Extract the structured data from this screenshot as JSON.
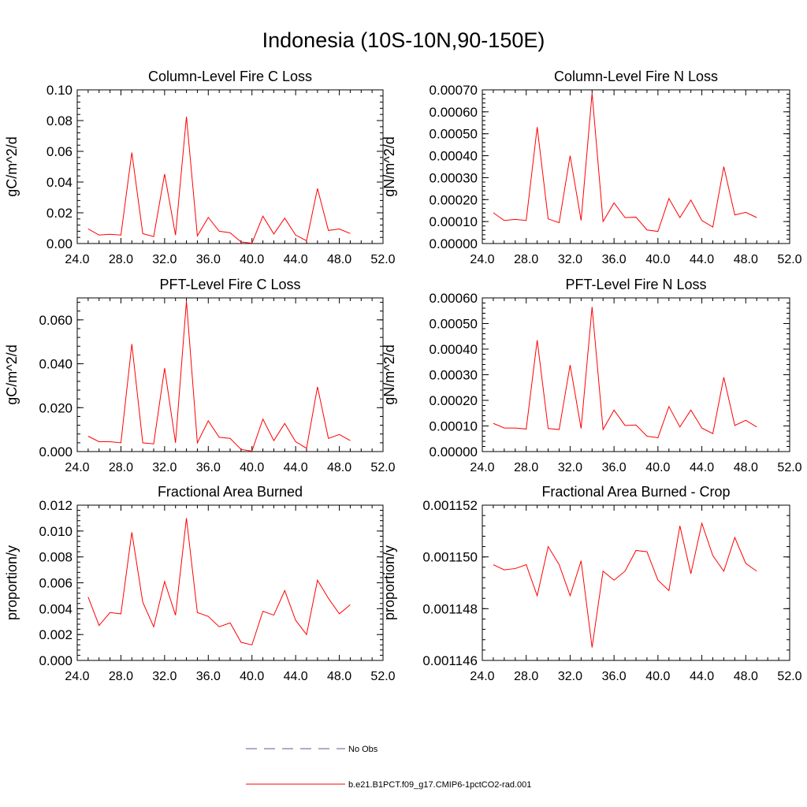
{
  "title": "Indonesia (10S-10N,90-150E)",
  "legend": {
    "placement": "bottom-center",
    "items": [
      {
        "label": "No Obs",
        "color": "#5a5aa0",
        "style": "dashed"
      },
      {
        "label": "b.e21.B1PCT.f09_g17.CMIP6-1pctCO2-rad.001",
        "color": "#ff0000",
        "style": "solid"
      }
    ]
  },
  "chart_data": [
    {
      "type": "line",
      "title": "Column-Level Fire C Loss",
      "ylabel": "gC/m^2/d",
      "xlabel": "",
      "xlim": [
        24,
        52
      ],
      "ylim": [
        0,
        0.1
      ],
      "xticks": [
        "24.0",
        "28.0",
        "32.0",
        "36.0",
        "40.0",
        "44.0",
        "48.0",
        "52.0"
      ],
      "yticks": [
        "0.00",
        "0.02",
        "0.04",
        "0.06",
        "0.08",
        "0.10"
      ],
      "x": [
        25,
        26,
        27,
        28,
        29,
        30,
        31,
        32,
        33,
        34,
        35,
        36,
        37,
        38,
        39,
        40,
        41,
        42,
        43,
        44,
        45,
        46,
        47,
        48,
        49
      ],
      "series": [
        {
          "color": "#ff0000",
          "values": [
            0.0095,
            0.0055,
            0.006,
            0.0055,
            0.0592,
            0.0065,
            0.0045,
            0.0452,
            0.0055,
            0.0825,
            0.005,
            0.017,
            0.008,
            0.007,
            0.001,
            0.0002,
            0.0178,
            0.0062,
            0.0165,
            0.0055,
            0.0018,
            0.0358,
            0.0085,
            0.0095,
            0.0065
          ]
        }
      ]
    },
    {
      "type": "line",
      "title": "Column-Level Fire N Loss",
      "ylabel": "gN/m^2/d",
      "xlabel": "",
      "xlim": [
        24,
        52
      ],
      "ylim": [
        0,
        0.0007
      ],
      "xticks": [
        "24.0",
        "28.0",
        "32.0",
        "36.0",
        "40.0",
        "44.0",
        "48.0",
        "52.0"
      ],
      "yticks": [
        "0.00000",
        "0.00010",
        "0.00020",
        "0.00030",
        "0.00040",
        "0.00050",
        "0.00060",
        "0.00070"
      ],
      "x": [
        25,
        26,
        27,
        28,
        29,
        30,
        31,
        32,
        33,
        34,
        35,
        36,
        37,
        38,
        39,
        40,
        41,
        42,
        43,
        44,
        45,
        46,
        47,
        48,
        49
      ],
      "series": [
        {
          "color": "#ff0000",
          "values": [
            0.00014,
            0.000105,
            0.00011,
            0.000105,
            0.00053,
            0.000112,
            9.5e-05,
            0.0004,
            0.000105,
            0.000685,
            0.0001,
            0.000185,
            0.000118,
            0.00012,
            6.2e-05,
            5.5e-05,
            0.000205,
            0.000118,
            0.000198,
            0.000105,
            7.5e-05,
            0.00035,
            0.00013,
            0.000142,
            0.000118
          ]
        }
      ]
    },
    {
      "type": "line",
      "title": "PFT-Level Fire C Loss",
      "ylabel": "gC/m^2/d",
      "xlabel": "",
      "xlim": [
        24,
        52
      ],
      "ylim": [
        0,
        0.07
      ],
      "xticks": [
        "24.0",
        "28.0",
        "32.0",
        "36.0",
        "40.0",
        "44.0",
        "48.0",
        "52.0"
      ],
      "yticks": [
        "0.000",
        "0.020",
        "0.040",
        "0.060"
      ],
      "ytick_values": [
        0,
        0.02,
        0.04,
        0.06
      ],
      "x": [
        25,
        26,
        27,
        28,
        29,
        30,
        31,
        32,
        33,
        34,
        35,
        36,
        37,
        38,
        39,
        40,
        41,
        42,
        43,
        44,
        45,
        46,
        47,
        48,
        49
      ],
      "series": [
        {
          "color": "#ff0000",
          "values": [
            0.007,
            0.0045,
            0.0045,
            0.004,
            0.049,
            0.004,
            0.0035,
            0.038,
            0.004,
            0.0685,
            0.004,
            0.014,
            0.0065,
            0.006,
            0.001,
            0.0002,
            0.0148,
            0.005,
            0.0128,
            0.0045,
            0.0015,
            0.0295,
            0.006,
            0.0078,
            0.005
          ]
        }
      ]
    },
    {
      "type": "line",
      "title": "PFT-Level Fire N Loss",
      "ylabel": "gN/m^2/d",
      "xlabel": "",
      "xlim": [
        24,
        52
      ],
      "ylim": [
        0,
        0.0006
      ],
      "xticks": [
        "24.0",
        "28.0",
        "32.0",
        "36.0",
        "40.0",
        "44.0",
        "48.0",
        "52.0"
      ],
      "yticks": [
        "0.00000",
        "0.00010",
        "0.00020",
        "0.00030",
        "0.00040",
        "0.00050",
        "0.00060"
      ],
      "x": [
        25,
        26,
        27,
        28,
        29,
        30,
        31,
        32,
        33,
        34,
        35,
        36,
        37,
        38,
        39,
        40,
        41,
        42,
        43,
        44,
        45,
        46,
        47,
        48,
        49
      ],
      "series": [
        {
          "color": "#ff0000",
          "values": [
            0.00011,
            9.2e-05,
            9.2e-05,
            8.8e-05,
            0.000435,
            9e-05,
            8.6e-05,
            0.000338,
            9e-05,
            0.000565,
            8.6e-05,
            0.000162,
            0.000102,
            0.000104,
            6e-05,
            5.4e-05,
            0.000176,
            9.6e-05,
            0.000162,
            9.2e-05,
            7e-05,
            0.00029,
            0.000102,
            0.000122,
            9.6e-05
          ]
        }
      ]
    },
    {
      "type": "line",
      "title": "Fractional Area Burned",
      "ylabel": "proportion/y",
      "xlabel": "",
      "xlim": [
        24,
        52
      ],
      "ylim": [
        0,
        0.012
      ],
      "xticks": [
        "24.0",
        "28.0",
        "32.0",
        "36.0",
        "40.0",
        "44.0",
        "48.0",
        "52.0"
      ],
      "yticks": [
        "0.000",
        "0.002",
        "0.004",
        "0.006",
        "0.008",
        "0.010",
        "0.012"
      ],
      "x": [
        25,
        26,
        27,
        28,
        29,
        30,
        31,
        32,
        33,
        34,
        35,
        36,
        37,
        38,
        39,
        40,
        41,
        42,
        43,
        44,
        45,
        46,
        47,
        48,
        49
      ],
      "series": [
        {
          "color": "#ff0000",
          "values": [
            0.0049,
            0.0027,
            0.0037,
            0.0036,
            0.0099,
            0.0045,
            0.0026,
            0.0061,
            0.0035,
            0.011,
            0.0037,
            0.0034,
            0.0026,
            0.0029,
            0.0014,
            0.0012,
            0.0038,
            0.0035,
            0.0054,
            0.0031,
            0.002,
            0.0062,
            0.0048,
            0.0036,
            0.0043
          ]
        }
      ]
    },
    {
      "type": "line",
      "title": "Fractional Area Burned - Crop",
      "ylabel": "proportion/y",
      "xlabel": "",
      "xlim": [
        24,
        52
      ],
      "ylim": [
        0.001146,
        0.001152
      ],
      "xticks": [
        "24.0",
        "28.0",
        "32.0",
        "36.0",
        "40.0",
        "44.0",
        "48.0",
        "52.0"
      ],
      "yticks": [
        "0.001146",
        "0.001148",
        "0.001150",
        "0.001152"
      ],
      "x": [
        25,
        26,
        27,
        28,
        29,
        30,
        31,
        32,
        33,
        34,
        35,
        36,
        37,
        38,
        39,
        40,
        41,
        42,
        43,
        44,
        45,
        46,
        47,
        48,
        49
      ],
      "series": [
        {
          "color": "#ff0000",
          "values": [
            0.0011497,
            0.0011495,
            0.00114955,
            0.0011497,
            0.0011485,
            0.0011504,
            0.0011497,
            0.0011485,
            0.00114985,
            0.0011465,
            0.00114945,
            0.0011491,
            0.00114945,
            0.00115025,
            0.0011502,
            0.0011491,
            0.0011487,
            0.0011512,
            0.00114935,
            0.0011513,
            0.00115005,
            0.00114945,
            0.00115075,
            0.00114975,
            0.00114945
          ]
        }
      ]
    }
  ]
}
